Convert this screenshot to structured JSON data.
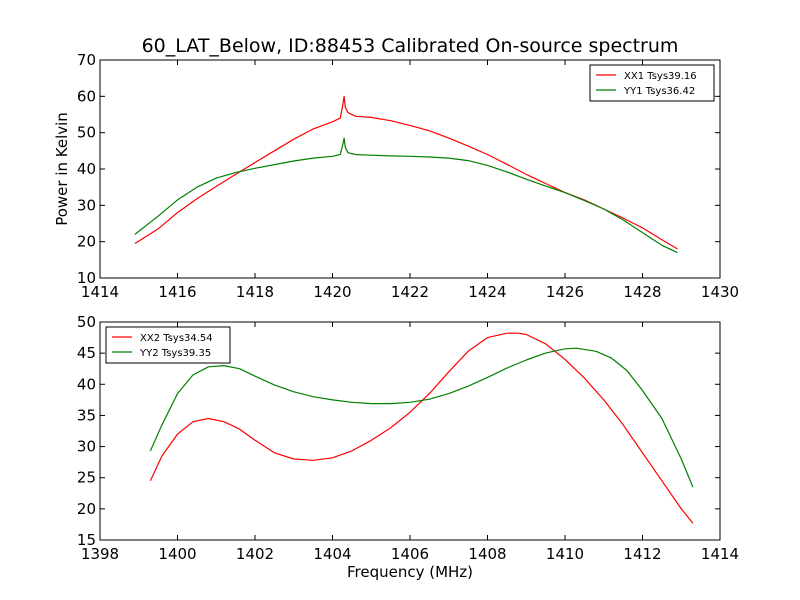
{
  "figure": {
    "title": "60_LAT_Below, ID:88453 Calibrated On-source spectrum",
    "ylabel": "Power in Kelvin",
    "xlabel": "Frequency (MHz)"
  },
  "chart_data": [
    {
      "type": "line",
      "title": "",
      "xlabel": "",
      "ylabel": "Power in Kelvin",
      "xlim": [
        1414,
        1430
      ],
      "ylim": [
        10,
        70
      ],
      "xticks": [
        1414,
        1416,
        1418,
        1420,
        1422,
        1424,
        1426,
        1428,
        1430
      ],
      "yticks": [
        10,
        20,
        30,
        40,
        50,
        60,
        70
      ],
      "grid": false,
      "legend": "top-right",
      "series": [
        {
          "name": "XX1 Tsys39.16",
          "color": "#ff0000",
          "x": [
            1414.9,
            1415.5,
            1416,
            1416.5,
            1417,
            1417.5,
            1418,
            1418.5,
            1419,
            1419.5,
            1420,
            1420.2,
            1420.27,
            1420.3,
            1420.33,
            1420.4,
            1420.6,
            1421,
            1421.5,
            1422,
            1422.5,
            1423,
            1423.5,
            1424,
            1424.5,
            1425,
            1425.5,
            1426,
            1426.5,
            1427,
            1427.5,
            1428,
            1428.5,
            1428.9
          ],
          "y": [
            19.5,
            23.5,
            28,
            31.8,
            35.2,
            38.5,
            41.8,
            45,
            48.2,
            51,
            53,
            54,
            58,
            60,
            57,
            55.5,
            54.5,
            54.2,
            53.3,
            52,
            50.5,
            48.5,
            46.3,
            44,
            41.3,
            38.5,
            36,
            33.5,
            31.5,
            29,
            26.5,
            23.8,
            20.5,
            18
          ]
        },
        {
          "name": "YY1 Tsys36.42",
          "color": "#008000",
          "x": [
            1414.9,
            1415.5,
            1416,
            1416.5,
            1417,
            1417.5,
            1418,
            1418.5,
            1419,
            1419.5,
            1420,
            1420.2,
            1420.27,
            1420.3,
            1420.33,
            1420.4,
            1420.6,
            1421,
            1421.5,
            1422,
            1422.5,
            1423,
            1423.5,
            1424,
            1424.5,
            1425,
            1425.5,
            1426,
            1426.5,
            1427,
            1427.5,
            1428,
            1428.5,
            1428.9
          ],
          "y": [
            22,
            27,
            31.5,
            35,
            37.5,
            39,
            40.2,
            41.2,
            42.2,
            43,
            43.5,
            44,
            47,
            48.5,
            46,
            44.5,
            44,
            43.8,
            43.6,
            43.5,
            43.3,
            43,
            42.3,
            41,
            39.2,
            37.2,
            35.3,
            33.5,
            31.3,
            29,
            26,
            22.5,
            19,
            17
          ]
        }
      ]
    },
    {
      "type": "line",
      "title": "",
      "xlabel": "Frequency (MHz)",
      "ylabel": "",
      "xlim": [
        1398,
        1414
      ],
      "ylim": [
        15,
        50
      ],
      "xticks": [
        1398,
        1400,
        1402,
        1404,
        1406,
        1408,
        1410,
        1412,
        1414
      ],
      "yticks": [
        15,
        20,
        25,
        30,
        35,
        40,
        45,
        50
      ],
      "grid": false,
      "legend": "top-left",
      "series": [
        {
          "name": "XX2 Tsys34.54",
          "color": "#ff0000",
          "x": [
            1399.3,
            1399.6,
            1400,
            1400.4,
            1400.8,
            1401.2,
            1401.6,
            1402,
            1402.5,
            1403,
            1403.5,
            1404,
            1404.5,
            1405,
            1405.5,
            1406,
            1406.5,
            1407,
            1407.5,
            1408,
            1408.5,
            1408.8,
            1409,
            1409.5,
            1410,
            1410.5,
            1411,
            1411.5,
            1412,
            1412.5,
            1413,
            1413.3
          ],
          "y": [
            24.5,
            28.5,
            32,
            34,
            34.5,
            34,
            32.8,
            31,
            29,
            28,
            27.8,
            28.2,
            29.3,
            31,
            33,
            35.5,
            38.5,
            42,
            45.3,
            47.5,
            48.2,
            48.2,
            48,
            46.5,
            44,
            41,
            37.5,
            33.5,
            29,
            24.5,
            20,
            17.7
          ]
        },
        {
          "name": "YY2 Tsys39.35",
          "color": "#008000",
          "x": [
            1399.3,
            1399.6,
            1400,
            1400.4,
            1400.8,
            1401.2,
            1401.6,
            1402,
            1402.5,
            1403,
            1403.5,
            1404,
            1404.5,
            1405,
            1405.5,
            1406,
            1406.5,
            1407,
            1407.5,
            1408,
            1408.5,
            1409,
            1409.5,
            1410,
            1410.3,
            1410.8,
            1411.2,
            1411.6,
            1412,
            1412.5,
            1413,
            1413.3
          ],
          "y": [
            29.3,
            33.5,
            38.5,
            41.5,
            42.8,
            43,
            42.5,
            41.3,
            39.9,
            38.8,
            38,
            37.5,
            37.1,
            36.9,
            36.9,
            37.1,
            37.6,
            38.5,
            39.7,
            41.1,
            42.6,
            43.9,
            45,
            45.7,
            45.8,
            45.3,
            44.2,
            42.2,
            39,
            34.5,
            28,
            23.5
          ]
        }
      ]
    }
  ]
}
